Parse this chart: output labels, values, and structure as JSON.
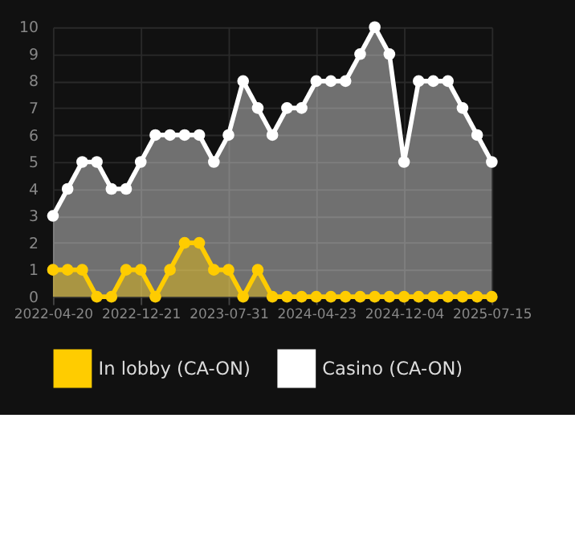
{
  "chart_data": {
    "type": "area",
    "categories": [
      "2022-04-20",
      null,
      null,
      null,
      null,
      null,
      "2022-12-21",
      null,
      null,
      null,
      null,
      null,
      "2023-07-31",
      null,
      null,
      null,
      null,
      null,
      "2024-04-23",
      null,
      null,
      null,
      null,
      null,
      "2024-12-04",
      null,
      null,
      null,
      null,
      null,
      "2025-07-15"
    ],
    "series": [
      {
        "name": "In lobby (CA-ON)",
        "color": "#ffcc00",
        "values": [
          1,
          1,
          1,
          0,
          0,
          1,
          1,
          0,
          1,
          2,
          2,
          1,
          1,
          0,
          1,
          0,
          0,
          0,
          0,
          0,
          0,
          0,
          0,
          0,
          0,
          0,
          0,
          0,
          0,
          0,
          0
        ]
      },
      {
        "name": "Casino (CA-ON)",
        "color": "#ffffff",
        "values": [
          3,
          4,
          5,
          5,
          4,
          4,
          5,
          6,
          6,
          6,
          6,
          5,
          6,
          8,
          7,
          6,
          7,
          7,
          8,
          8,
          8,
          9,
          10,
          9,
          5,
          8,
          8,
          8,
          7,
          6,
          5
        ]
      }
    ],
    "ylim": [
      0,
      10
    ],
    "yticks": [
      0,
      1,
      2,
      3,
      4,
      5,
      6,
      7,
      8,
      9,
      10
    ],
    "grid": true,
    "legend": "bottom",
    "marker": "circle",
    "line_style": "solid"
  }
}
